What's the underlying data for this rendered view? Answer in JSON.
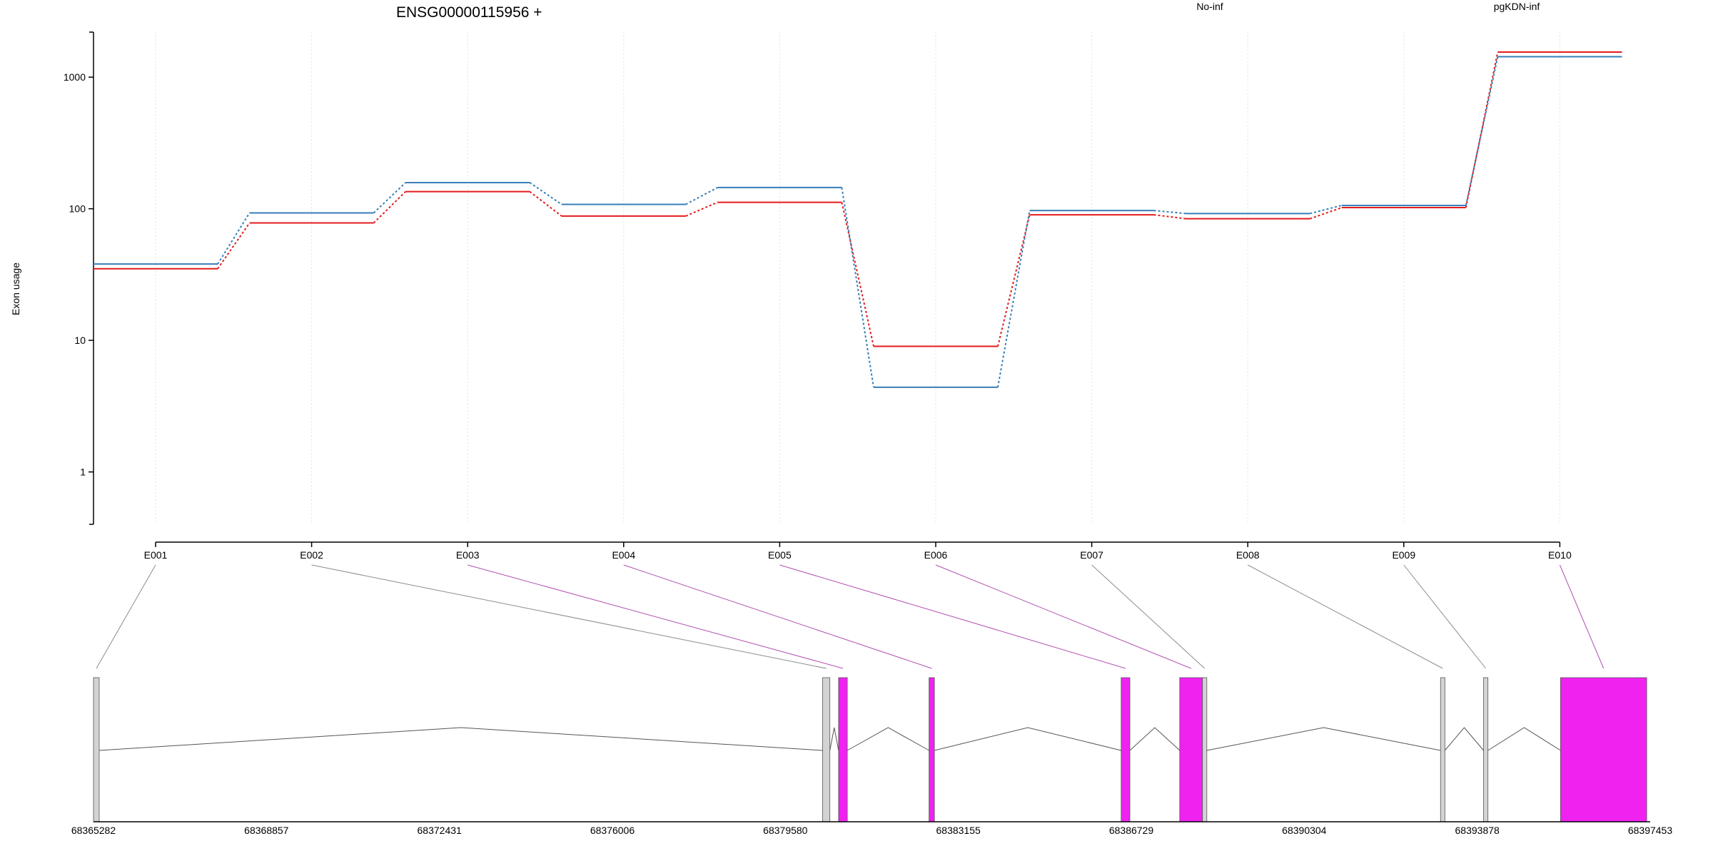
{
  "colors": {
    "no_inf": "#e41a1c",
    "pgkdn_inf": "#377eb8",
    "significant_exon": "#f022f0",
    "normal_exon": "#d3d3d3",
    "significant_link": "#b04fb0",
    "normal_link": "#8c8c8c"
  },
  "chart_data": {
    "type": "line",
    "title": "ENSG00000115956 +",
    "xlabel": "",
    "ylabel": "Exon usage",
    "y_scale": "log",
    "ylim": [
      0.4,
      2200
    ],
    "y_ticks": [
      1,
      10,
      100,
      1000
    ],
    "y_tick_labels": [
      "1",
      "10",
      "100",
      "1000"
    ],
    "grid": "vertical dotted lines at each exon",
    "legend_position": "top-right",
    "categories": [
      "E001",
      "E002",
      "E003",
      "E004",
      "E005",
      "E006",
      "E007",
      "E008",
      "E009",
      "E010"
    ],
    "series": [
      {
        "name": "No-inf",
        "color": "#e41a1c",
        "values": [
          35,
          78,
          135,
          88,
          112,
          9,
          90,
          84,
          102,
          1550
        ]
      },
      {
        "name": "pgKDN-inf",
        "color": "#377eb8",
        "values": [
          38,
          93,
          158,
          108,
          145,
          4.4,
          97,
          92,
          106,
          1430
        ]
      }
    ],
    "gene_model": {
      "coordinate_ticks": [
        "68365282",
        "68368857",
        "68372431",
        "68376006",
        "68379580",
        "68383155",
        "68386729",
        "68390304",
        "68393878",
        "68397453"
      ],
      "coordinate_range": [
        68365282,
        68397453
      ],
      "exons": [
        {
          "id": "E001",
          "start": 68365282,
          "end": 68365400,
          "significant": false
        },
        {
          "id": "E002",
          "start": 68380350,
          "end": 68380500,
          "significant": false
        },
        {
          "id": "E003",
          "start": 68380680,
          "end": 68380860,
          "significant": true
        },
        {
          "id": "E004",
          "start": 68382550,
          "end": 68382660,
          "significant": true
        },
        {
          "id": "E005",
          "start": 68386520,
          "end": 68386700,
          "significant": true
        },
        {
          "id": "E006",
          "start": 68387730,
          "end": 68388200,
          "significant": true
        },
        {
          "id": "E007",
          "start": 68388200,
          "end": 68388290,
          "significant": false
        },
        {
          "id": "E008",
          "start": 68393120,
          "end": 68393210,
          "significant": false
        },
        {
          "id": "E009",
          "start": 68394010,
          "end": 68394100,
          "significant": false
        },
        {
          "id": "E010",
          "start": 68395600,
          "end": 68397380,
          "significant": true
        }
      ],
      "introns": [
        [
          68365400,
          68380350
        ],
        [
          68380500,
          68380680
        ],
        [
          68380860,
          68382550
        ],
        [
          68382660,
          68386520
        ],
        [
          68386700,
          68387730
        ],
        [
          68388290,
          68393120
        ],
        [
          68393210,
          68394010
        ],
        [
          68394100,
          68395600
        ]
      ]
    }
  }
}
